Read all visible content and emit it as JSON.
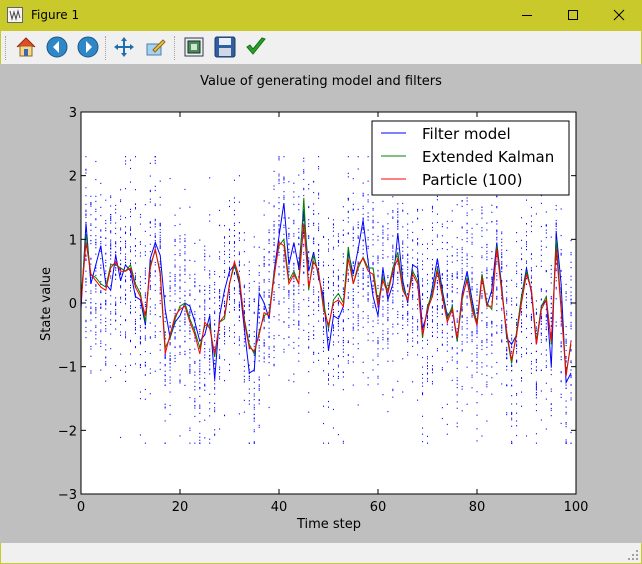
{
  "window": {
    "title": "Figure 1",
    "icon": "matplotlib-figure-icon",
    "controls": [
      "minimize-icon",
      "maximize-icon",
      "close-icon"
    ]
  },
  "toolbar": {
    "buttons": [
      {
        "name": "home-button",
        "icon": "home-icon"
      },
      {
        "name": "back-button",
        "icon": "back-arrow-icon"
      },
      {
        "name": "forward-button",
        "icon": "forward-arrow-icon"
      },
      {
        "name": "pan-button",
        "icon": "move-arrows-icon"
      },
      {
        "name": "zoom-button",
        "icon": "zoom-rect-icon"
      },
      {
        "name": "subplots-button",
        "icon": "subplots-config-icon"
      },
      {
        "name": "save-button",
        "icon": "floppy-disk-icon"
      },
      {
        "name": "edit-axes-button",
        "icon": "checkmark-icon"
      }
    ]
  },
  "chart_data": {
    "type": "line",
    "title": "Value of generating model and filters",
    "xlabel": "Time step",
    "ylabel": "State value",
    "xlim": [
      0,
      100
    ],
    "ylim": [
      -3,
      3
    ],
    "xticks": [
      0,
      20,
      40,
      60,
      80,
      100
    ],
    "yticks": [
      -3,
      -2,
      -1,
      0,
      1,
      2,
      3
    ],
    "grid": false,
    "legend_position": "top-right",
    "particle_points": "blue dots: 100 particle samples per time step, spread roughly between -2 and 2",
    "series": [
      {
        "name": "Filter model",
        "color": "#0000ff",
        "x": [
          0,
          1,
          2,
          3,
          4,
          5,
          6,
          7,
          8,
          9,
          10,
          11,
          12,
          13,
          14,
          15,
          16,
          17,
          18,
          19,
          20,
          21,
          22,
          23,
          24,
          25,
          26,
          27,
          28,
          29,
          30,
          31,
          32,
          33,
          34,
          35,
          36,
          37,
          38,
          39,
          40,
          41,
          42,
          43,
          44,
          45,
          46,
          47,
          48,
          49,
          50,
          51,
          52,
          53,
          54,
          55,
          56,
          57,
          58,
          59,
          60,
          61,
          62,
          63,
          64,
          65,
          66,
          67,
          68,
          69,
          70,
          71,
          72,
          73,
          74,
          75,
          76,
          77,
          78,
          79,
          80,
          81,
          82,
          83,
          84,
          85,
          86,
          87,
          88,
          89,
          90,
          91,
          92,
          93,
          94,
          95,
          96,
          97,
          98,
          99
        ],
        "values": [
          -0.1,
          1.25,
          0.3,
          0.6,
          0.9,
          0.3,
          0.2,
          0.75,
          0.35,
          0.6,
          0.5,
          0.1,
          0.05,
          -0.35,
          0.7,
          0.95,
          0.75,
          -0.1,
          -0.55,
          -0.3,
          -0.2,
          0.0,
          -0.05,
          -0.3,
          -0.6,
          -0.5,
          -0.2,
          -1.2,
          -0.2,
          0.2,
          0.5,
          0.6,
          0.3,
          -0.4,
          -1.1,
          -1.05,
          0.15,
          0.0,
          -0.25,
          0.5,
          1.05,
          1.57,
          0.6,
          0.95,
          0.55,
          1.45,
          0.5,
          0.8,
          0.4,
          0.1,
          -0.75,
          -0.2,
          -0.25,
          -0.05,
          0.8,
          0.45,
          0.85,
          1.3,
          0.65,
          0.1,
          -0.2,
          0.55,
          0.05,
          0.3,
          1.1,
          0.35,
          0.0,
          0.6,
          0.55,
          -0.4,
          -0.15,
          0.25,
          0.7,
          0.2,
          -0.2,
          -0.1,
          -0.6,
          0.15,
          0.5,
          0.05,
          -0.35,
          0.45,
          -0.05,
          0.2,
          0.95,
          0.25,
          -0.55,
          -0.65,
          -0.5,
          0.1,
          0.55,
          0.15,
          -0.65,
          -0.05,
          0.05,
          -1.0,
          1.12,
          0.3,
          -1.25,
          -1.1
        ]
      },
      {
        "name": "Extended Kalman",
        "color": "#008000",
        "x": [
          0,
          1,
          2,
          3,
          4,
          5,
          6,
          7,
          8,
          9,
          10,
          11,
          12,
          13,
          14,
          15,
          16,
          17,
          18,
          19,
          20,
          21,
          22,
          23,
          24,
          25,
          26,
          27,
          28,
          29,
          30,
          31,
          32,
          33,
          34,
          35,
          36,
          37,
          38,
          39,
          40,
          41,
          42,
          43,
          44,
          45,
          46,
          47,
          48,
          49,
          50,
          51,
          52,
          53,
          54,
          55,
          56,
          57,
          58,
          59,
          60,
          61,
          62,
          63,
          64,
          65,
          66,
          67,
          68,
          69,
          70,
          71,
          72,
          73,
          74,
          75,
          76,
          77,
          78,
          79,
          80,
          81,
          82,
          83,
          84,
          85,
          86,
          87,
          88,
          89,
          90,
          91,
          92,
          93,
          94,
          95,
          96,
          97,
          98,
          99
        ],
        "values": [
          0.05,
          1.08,
          0.45,
          0.4,
          0.3,
          0.25,
          0.6,
          0.6,
          0.55,
          0.5,
          0.6,
          0.3,
          0.15,
          -0.3,
          0.6,
          0.82,
          0.5,
          -0.7,
          -0.55,
          -0.25,
          -0.05,
          0.0,
          -0.25,
          -0.45,
          -0.7,
          -0.35,
          -0.35,
          -0.85,
          -0.3,
          -0.25,
          0.3,
          0.6,
          0.35,
          -0.25,
          -0.65,
          -0.8,
          -0.45,
          -0.2,
          -0.15,
          0.45,
          0.9,
          1.0,
          0.35,
          0.5,
          0.3,
          1.65,
          0.2,
          0.75,
          0.45,
          0.0,
          -0.4,
          0.05,
          0.15,
          0.0,
          0.88,
          0.3,
          0.55,
          0.72,
          0.55,
          0.55,
          0.0,
          0.4,
          0.2,
          0.55,
          0.8,
          0.25,
          0.05,
          0.5,
          0.35,
          -0.55,
          -0.05,
          0.15,
          0.55,
          0.15,
          -0.25,
          -0.05,
          -0.6,
          0.05,
          0.4,
          -0.05,
          -0.3,
          0.45,
          0.0,
          -0.1,
          0.9,
          0.2,
          -0.5,
          -0.95,
          -0.45,
          0.1,
          0.5,
          0.2,
          -0.6,
          -0.05,
          0.1,
          -0.65,
          1.0,
          -0.05,
          -1.1,
          -0.65
        ]
      },
      {
        "name": "Particle (100)",
        "color": "#ff0000",
        "x": [
          0,
          1,
          2,
          3,
          4,
          5,
          6,
          7,
          8,
          9,
          10,
          11,
          12,
          13,
          14,
          15,
          16,
          17,
          18,
          19,
          20,
          21,
          22,
          23,
          24,
          25,
          26,
          27,
          28,
          29,
          30,
          31,
          32,
          33,
          34,
          35,
          36,
          37,
          38,
          39,
          40,
          41,
          42,
          43,
          44,
          45,
          46,
          47,
          48,
          49,
          50,
          51,
          52,
          53,
          54,
          55,
          56,
          57,
          58,
          59,
          60,
          61,
          62,
          63,
          64,
          65,
          66,
          67,
          68,
          69,
          70,
          71,
          72,
          73,
          74,
          75,
          76,
          77,
          78,
          79,
          80,
          81,
          82,
          83,
          84,
          85,
          86,
          87,
          88,
          89,
          90,
          91,
          92,
          93,
          94,
          95,
          96,
          97,
          98,
          99
        ],
        "values": [
          0.0,
          0.95,
          0.45,
          0.35,
          0.25,
          0.2,
          0.55,
          0.65,
          0.5,
          0.5,
          0.55,
          0.25,
          0.1,
          -0.2,
          0.55,
          0.85,
          0.45,
          -0.8,
          -0.5,
          -0.2,
          -0.1,
          -0.05,
          -0.3,
          -0.5,
          -0.8,
          -0.3,
          -0.4,
          -0.8,
          -0.3,
          -0.2,
          0.3,
          0.65,
          0.4,
          -0.3,
          -0.7,
          -0.75,
          -0.5,
          -0.15,
          -0.2,
          0.4,
          0.95,
          0.9,
          0.3,
          0.45,
          0.3,
          1.25,
          0.25,
          0.65,
          0.5,
          -0.1,
          -0.35,
          0.0,
          0.05,
          -0.05,
          0.7,
          0.3,
          0.6,
          0.7,
          0.5,
          0.45,
          -0.05,
          0.35,
          0.15,
          0.5,
          0.7,
          0.2,
          0.05,
          0.45,
          0.3,
          -0.5,
          -0.1,
          0.1,
          0.5,
          0.1,
          -0.3,
          -0.1,
          -0.55,
          0.1,
          0.35,
          -0.1,
          -0.35,
          0.4,
          -0.05,
          -0.05,
          0.85,
          0.15,
          -0.45,
          -0.9,
          -0.5,
          0.0,
          0.45,
          0.2,
          -0.65,
          -0.1,
          0.05,
          -0.6,
          0.85,
          -0.1,
          -1.15,
          -0.6
        ]
      }
    ]
  }
}
